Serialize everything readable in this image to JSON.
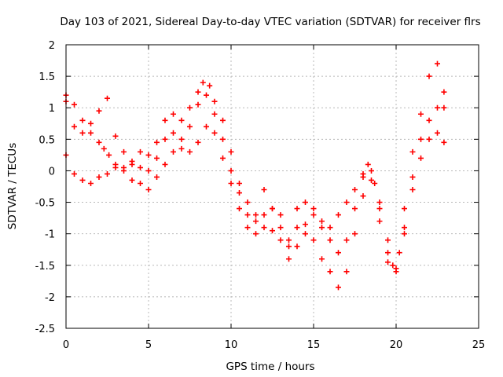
{
  "chart_data": {
    "type": "scatter",
    "title": "Day 103 of 2021, Sidereal Day-to-day VTEC variation (SDTVAR) for receiver flrs",
    "xlabel": "GPS time / hours",
    "ylabel": "SDTVAR / TECUs",
    "xlim": [
      0,
      25
    ],
    "ylim": [
      -2.5,
      2
    ],
    "xticks": [
      0,
      5,
      10,
      15,
      20,
      25
    ],
    "yticks": [
      -2.5,
      -2,
      -1.5,
      -1,
      -0.5,
      0,
      0.5,
      1,
      1.5,
      2
    ],
    "grid": true,
    "marker": "+",
    "color": "#ff0000",
    "series": [
      {
        "x": [
          0,
          0.5,
          1,
          1.5,
          2,
          2.3,
          2.6,
          3,
          3.5,
          4,
          4.5,
          5,
          5.5,
          6,
          6.5,
          7,
          7.5,
          8,
          8.3,
          8.7,
          9,
          9.5,
          10,
          10.5,
          11,
          11.5,
          12,
          12.5,
          13,
          13.5,
          14,
          14.5,
          15,
          15.5,
          16,
          16.5,
          17,
          17.5,
          18,
          18.3,
          18.7,
          19,
          19.5,
          19.8,
          20.2,
          20.5,
          21,
          21.5,
          22,
          22.5,
          22.9
        ],
        "y": [
          1.2,
          1.05,
          0.8,
          0.6,
          0.45,
          0.35,
          0.25,
          0.1,
          0.05,
          0.15,
          0.3,
          0.25,
          0.45,
          0.8,
          0.9,
          0.8,
          1.0,
          1.25,
          1.4,
          1.35,
          1.1,
          0.8,
          0.3,
          -0.2,
          -0.5,
          -0.7,
          -0.3,
          -0.6,
          -0.7,
          -1.1,
          -0.6,
          -0.5,
          -0.6,
          -0.8,
          -0.9,
          -0.7,
          -0.5,
          -0.3,
          -0.05,
          0.1,
          -0.2,
          -0.5,
          -1.1,
          -1.5,
          -1.3,
          -0.6,
          0.3,
          0.9,
          1.5,
          1.7,
          1.25
        ]
      },
      {
        "x": [
          0,
          0.5,
          1,
          1.5,
          2,
          2.5,
          3,
          3.5,
          4,
          4.5,
          5,
          5.5,
          6,
          6.5,
          7,
          7.5,
          8,
          8.5,
          9,
          9.5,
          10,
          10.5,
          11,
          11.5,
          12,
          12.5,
          13,
          13.5,
          14,
          14.5,
          15,
          15.5,
          16,
          16.5,
          17,
          17.5,
          18,
          18.5,
          19,
          19.5,
          20,
          20.5,
          21,
          21.5,
          22,
          22.5,
          22.9
        ],
        "y": [
          1.1,
          0.7,
          0.6,
          0.75,
          0.95,
          1.15,
          0.55,
          0.3,
          0.1,
          0.05,
          0.0,
          0.2,
          0.5,
          0.6,
          0.5,
          0.7,
          1.05,
          1.2,
          0.9,
          0.5,
          0.0,
          -0.35,
          -0.7,
          -0.8,
          -0.9,
          -0.6,
          -0.9,
          -1.2,
          -0.9,
          -0.85,
          -0.7,
          -0.9,
          -1.1,
          -1.3,
          -1.1,
          -0.6,
          -0.1,
          0.0,
          -0.6,
          -1.3,
          -1.55,
          -0.9,
          -0.1,
          0.5,
          0.8,
          1.0,
          1.0
        ]
      },
      {
        "x": [
          0,
          0.5,
          1,
          1.5,
          2,
          2.5,
          3,
          3.5,
          4,
          4.5,
          5,
          5.5,
          6,
          6.5,
          7,
          7.5,
          8,
          8.5,
          9,
          9.5,
          10,
          10.5,
          11,
          11.5,
          12,
          12.5,
          13,
          13.5,
          14,
          14.5,
          15,
          15.5,
          16,
          16.5,
          17,
          17.5,
          18,
          18.5,
          19,
          19.5,
          20,
          20.5,
          21,
          21.5,
          22,
          22.5,
          22.9
        ],
        "y": [
          0.25,
          -0.05,
          -0.15,
          -0.2,
          -0.1,
          -0.05,
          0.05,
          0.0,
          -0.15,
          -0.2,
          -0.3,
          -0.1,
          0.1,
          0.3,
          0.35,
          0.3,
          0.45,
          0.7,
          0.6,
          0.2,
          -0.2,
          -0.6,
          -0.9,
          -1.0,
          -0.7,
          -0.95,
          -1.1,
          -1.4,
          -1.2,
          -1.0,
          -1.1,
          -1.4,
          -1.6,
          -1.85,
          -1.6,
          -1.0,
          -0.4,
          -0.15,
          -0.8,
          -1.45,
          -1.6,
          -1.0,
          -0.3,
          0.2,
          0.5,
          0.6,
          0.45
        ]
      }
    ]
  }
}
